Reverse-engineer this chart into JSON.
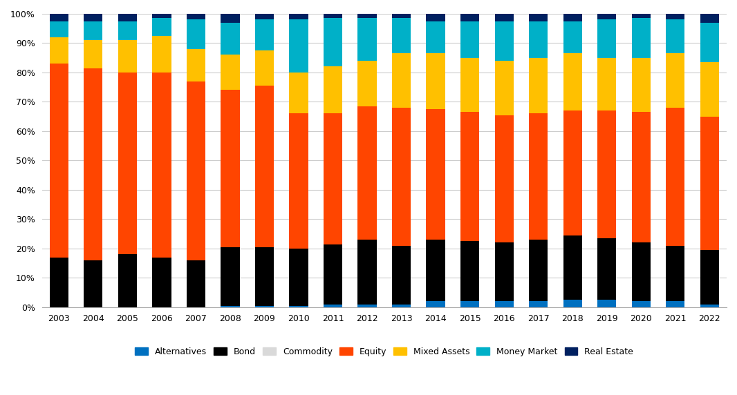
{
  "years": [
    2003,
    2004,
    2005,
    2006,
    2007,
    2008,
    2009,
    2010,
    2011,
    2012,
    2013,
    2014,
    2015,
    2016,
    2017,
    2018,
    2019,
    2020,
    2021,
    2022
  ],
  "categories": [
    "Alternatives",
    "Bond",
    "Commodity",
    "Equity",
    "Mixed Assets",
    "Money Market",
    "Real Estate"
  ],
  "colors": [
    "#0070C0",
    "#000000",
    "#D9D9D9",
    "#FF4500",
    "#FFC000",
    "#00B0C8",
    "#002060"
  ],
  "data": {
    "Alternatives": [
      0.0,
      0.0,
      0.0,
      0.0,
      0.0,
      0.5,
      0.5,
      0.5,
      1.0,
      1.0,
      1.0,
      2.0,
      2.0,
      2.0,
      2.0,
      2.5,
      2.5,
      2.0,
      2.0,
      1.0
    ],
    "Bond": [
      17.0,
      16.0,
      18.0,
      17.0,
      16.0,
      20.0,
      20.0,
      19.5,
      20.5,
      22.0,
      20.0,
      21.0,
      20.5,
      20.0,
      21.0,
      22.0,
      21.0,
      20.0,
      19.0,
      18.5
    ],
    "Commodity": [
      0.0,
      0.0,
      0.0,
      0.0,
      0.0,
      0.0,
      0.0,
      0.0,
      0.0,
      0.0,
      0.0,
      0.0,
      0.0,
      0.0,
      0.0,
      0.0,
      0.0,
      0.0,
      0.0,
      0.0
    ],
    "Equity": [
      66.0,
      65.5,
      62.0,
      63.0,
      61.0,
      53.5,
      55.0,
      46.0,
      44.5,
      45.5,
      47.0,
      44.5,
      44.0,
      43.5,
      43.0,
      42.5,
      43.5,
      44.5,
      47.0,
      45.5
    ],
    "Mixed Assets": [
      9.0,
      9.5,
      11.0,
      12.5,
      11.0,
      12.0,
      12.0,
      14.0,
      16.0,
      15.5,
      18.5,
      19.0,
      18.5,
      18.5,
      19.0,
      19.5,
      18.0,
      18.5,
      18.5,
      18.5
    ],
    "Money Market": [
      5.5,
      6.5,
      6.5,
      6.0,
      10.0,
      11.0,
      10.5,
      18.0,
      16.5,
      14.5,
      12.0,
      11.0,
      12.5,
      13.5,
      12.5,
      11.0,
      13.0,
      13.5,
      11.5,
      13.5
    ],
    "Real Estate": [
      2.5,
      2.5,
      2.5,
      1.5,
      2.0,
      3.0,
      2.0,
      2.0,
      1.5,
      1.5,
      1.5,
      2.5,
      2.5,
      2.5,
      2.5,
      2.5,
      2.0,
      1.5,
      2.0,
      3.0
    ]
  },
  "background_color": "#FFFFFF",
  "grid_color": "#CCCCCC",
  "spine_color": "#AAAAAA"
}
